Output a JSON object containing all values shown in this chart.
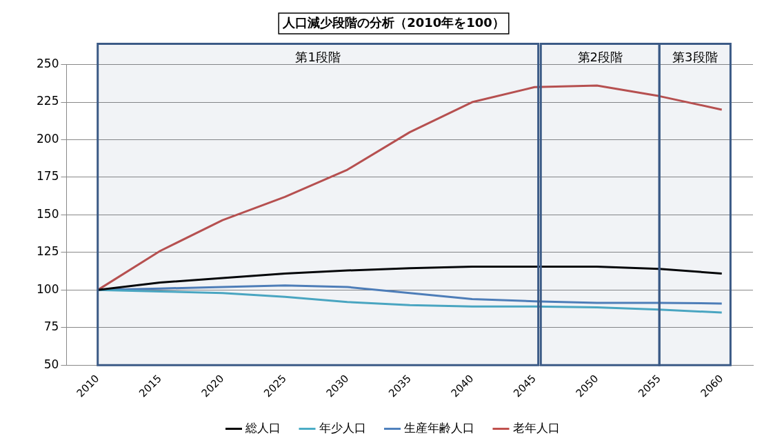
{
  "chart_data": {
    "type": "line",
    "title": "人口減少段階の分析（2010年を100）",
    "x": [
      2010,
      2015,
      2020,
      2025,
      2030,
      2035,
      2040,
      2045,
      2050,
      2055,
      2060
    ],
    "series": [
      {
        "name": "総人口",
        "color": "#000000",
        "values": [
          100,
          105,
          108,
          111,
          113,
          114.5,
          115.5,
          115.5,
          115.5,
          114,
          111
        ]
      },
      {
        "name": "年少人口",
        "color": "#4bacc6",
        "values": [
          100,
          99,
          98,
          95.5,
          92,
          90,
          89,
          89,
          88.5,
          87,
          85
        ]
      },
      {
        "name": "生産年齢人口",
        "color": "#4f81bd",
        "values": [
          100,
          101,
          102,
          103,
          102,
          98,
          94,
          92.5,
          91.5,
          91.5,
          91
        ]
      },
      {
        "name": "老年人口",
        "color": "#c0504d",
        "values": [
          100,
          126,
          146.5,
          162,
          180,
          205,
          225,
          235,
          236,
          229,
          220
        ]
      }
    ],
    "xlim": [
      2007.5,
      2062.5
    ],
    "xticks": [
      2010,
      2015,
      2020,
      2025,
      2030,
      2035,
      2040,
      2045,
      2050,
      2055,
      2060
    ],
    "ylim": [
      50,
      250
    ],
    "yticks": [
      50,
      75,
      100,
      125,
      150,
      175,
      200,
      225,
      250
    ],
    "bands": [
      {
        "axis": "x",
        "from": 2010,
        "to": 2045.3,
        "label": "第1段階",
        "color": "#3b5a86"
      },
      {
        "axis": "x",
        "from": 2045.5,
        "to": 2055,
        "label": "第2段階",
        "color": "#3b5a86"
      },
      {
        "axis": "x",
        "from": 2055,
        "to": 2060.7,
        "label": "第3段階",
        "color": "#3b5a86"
      }
    ],
    "grid": "y",
    "legend": "bottom",
    "marker": "none",
    "line_style": "solid"
  }
}
